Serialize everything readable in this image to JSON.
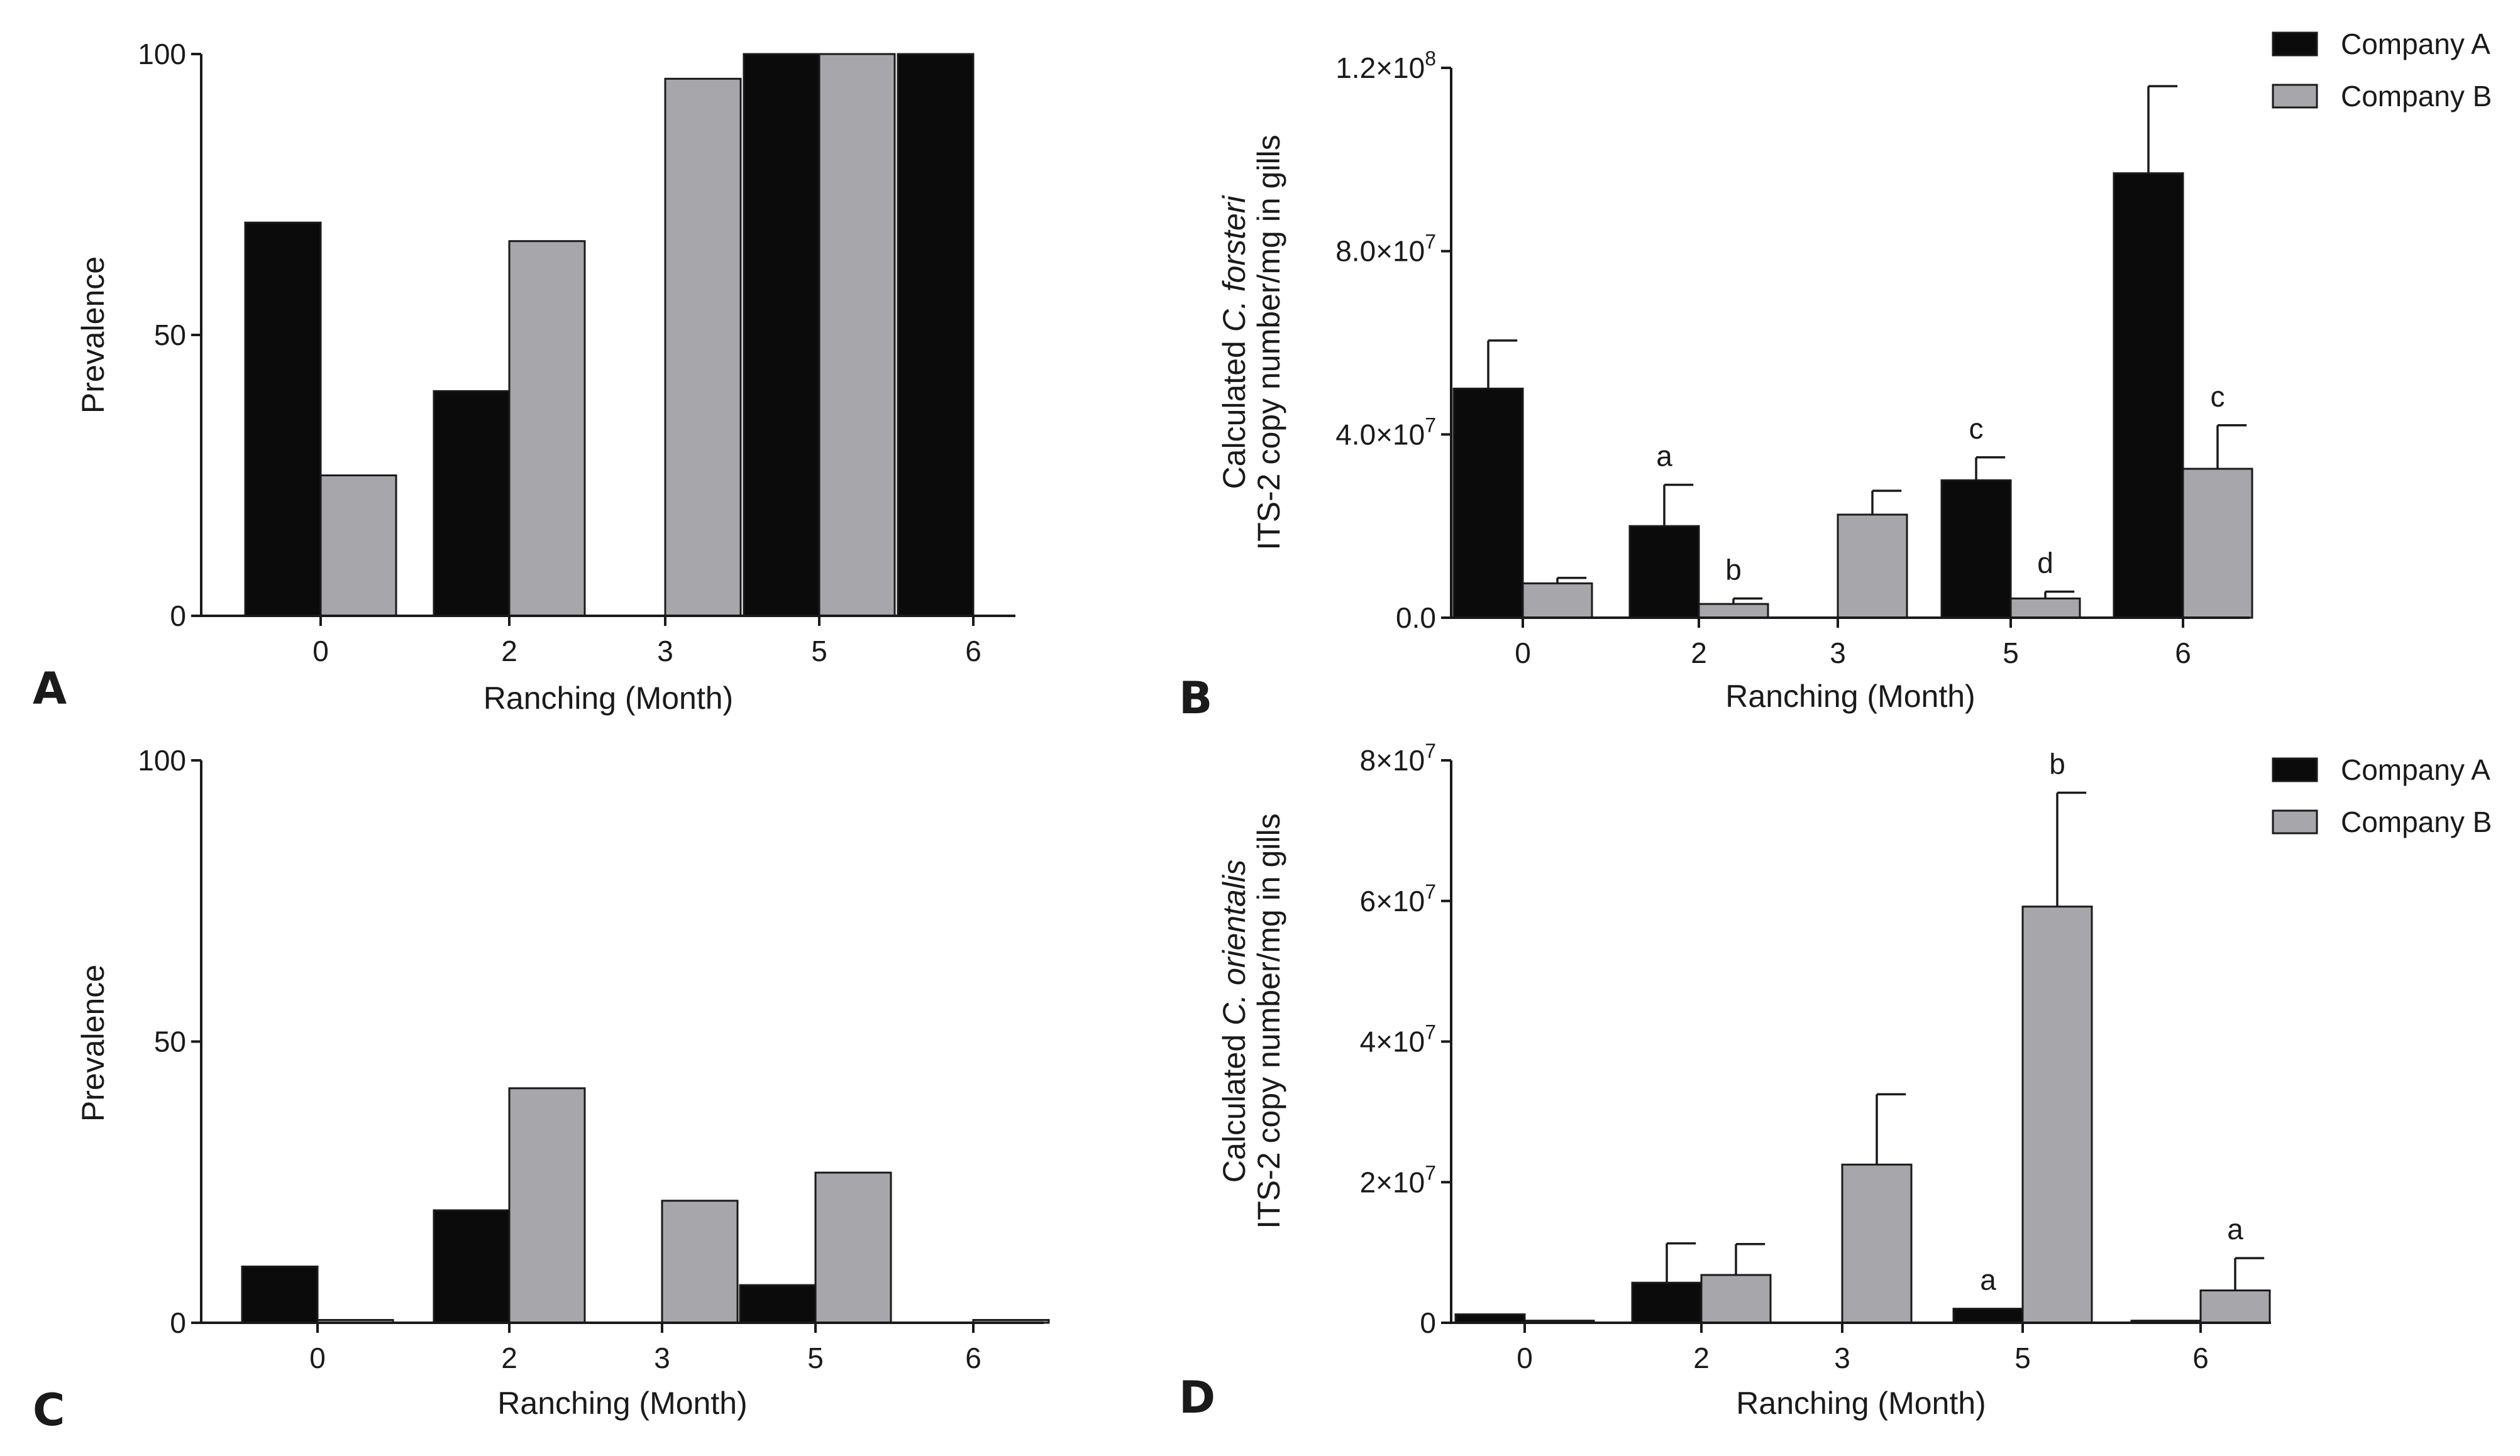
{
  "colors": {
    "company_a": "#0b0b0b",
    "company_b": "#a7a6ab",
    "axis": "#1a1a1a"
  },
  "legend": {
    "company_a": "Company A",
    "company_b": "Company B"
  },
  "chart_data": [
    {
      "panel": "A",
      "type": "bar",
      "title": "",
      "xlabel": "Ranching (Month)",
      "ylabel": "Prevalence",
      "categories": [
        "0",
        "2",
        "3",
        "5",
        "6"
      ],
      "ylim": [
        0,
        100
      ],
      "yticks": [
        0,
        50,
        100
      ],
      "ytick_labels": [
        "0",
        "50",
        "100"
      ],
      "series": [
        {
          "name": "Company A",
          "values": [
            70,
            40,
            null,
            100,
            100
          ],
          "errors": null
        },
        {
          "name": "Company B",
          "values": [
            25,
            66.7,
            95.6,
            100,
            null
          ],
          "errors": null
        }
      ],
      "annotations": []
    },
    {
      "panel": "B",
      "type": "bar",
      "title": "",
      "xlabel": "Ranching (Month)",
      "ylabel_line1_pre": "Calculated ",
      "ylabel_line1_species": "C. forsteri",
      "ylabel_line2": "ITS-2 copy number/mg in gills",
      "categories": [
        "0",
        "2",
        "3",
        "5",
        "6"
      ],
      "ylim": [
        0,
        120000000
      ],
      "yticks": [
        0,
        40000000,
        80000000,
        120000000
      ],
      "ytick_labels": [
        "0.0",
        "4.0×10",
        "8.0×10",
        "1.2×10"
      ],
      "ytick_exps": [
        "",
        "7",
        "7",
        "8"
      ],
      "series": [
        {
          "name": "Company A",
          "values": [
            50000000,
            20000000,
            null,
            30000000,
            97000000
          ],
          "errors": [
            10500000,
            9000000,
            null,
            5000000,
            19000000
          ]
        },
        {
          "name": "Company B",
          "values": [
            7500000,
            3000000,
            22500000,
            4200000,
            32500000
          ],
          "errors": [
            1200000,
            1200000,
            5200000,
            1500000,
            9500000
          ]
        }
      ],
      "annotations": [
        {
          "category": "2",
          "series": "Company A",
          "text": "a"
        },
        {
          "category": "2",
          "series": "Company B",
          "text": "b"
        },
        {
          "category": "5",
          "series": "Company A",
          "text": "c"
        },
        {
          "category": "5",
          "series": "Company B",
          "text": "d"
        },
        {
          "category": "6",
          "series": "Company B",
          "text": "c"
        }
      ]
    },
    {
      "panel": "C",
      "type": "bar",
      "title": "",
      "xlabel": "Ranching (Month)",
      "ylabel": "Prevalence",
      "categories": [
        "0",
        "2",
        "3",
        "5",
        "6"
      ],
      "ylim": [
        0,
        100
      ],
      "yticks": [
        0,
        50,
        100
      ],
      "ytick_labels": [
        "0",
        "50",
        "100"
      ],
      "series": [
        {
          "name": "Company A",
          "values": [
            10,
            20,
            null,
            6.7,
            null
          ],
          "errors": null
        },
        {
          "name": "Company B",
          "values": [
            0.5,
            41.7,
            21.7,
            26.7,
            0.5
          ],
          "errors": null
        }
      ],
      "annotations": []
    },
    {
      "panel": "D",
      "type": "bar",
      "title": "",
      "xlabel": "Ranching (Month)",
      "ylabel_line1_pre": "Calculated ",
      "ylabel_line1_species": "C. orientalis",
      "ylabel_line2": "ITS-2 copy number/mg in gills",
      "categories": [
        "0",
        "2",
        "3",
        "5",
        "6"
      ],
      "ylim": [
        0,
        80000000
      ],
      "yticks": [
        0,
        20000000,
        40000000,
        60000000,
        80000000
      ],
      "ytick_labels": [
        "0",
        "2×10",
        "4×10",
        "6×10",
        "8×10"
      ],
      "ytick_exps": [
        "",
        "7",
        "7",
        "7",
        "7"
      ],
      "series": [
        {
          "name": "Company A",
          "values": [
            1200000,
            5700000,
            null,
            2000000,
            300000
          ],
          "errors": [
            0,
            5600000,
            null,
            0,
            0
          ]
        },
        {
          "name": "Company B",
          "values": [
            300000,
            6800000,
            22500000,
            59200000,
            4600000
          ],
          "errors": [
            0,
            4400000,
            10000000,
            16200000,
            4600000
          ]
        }
      ],
      "annotations": [
        {
          "category": "5",
          "series": "Company A",
          "text": "a"
        },
        {
          "category": "5",
          "series": "Company B",
          "text": "b"
        },
        {
          "category": "6",
          "series": "Company B",
          "text": "a"
        }
      ]
    }
  ]
}
